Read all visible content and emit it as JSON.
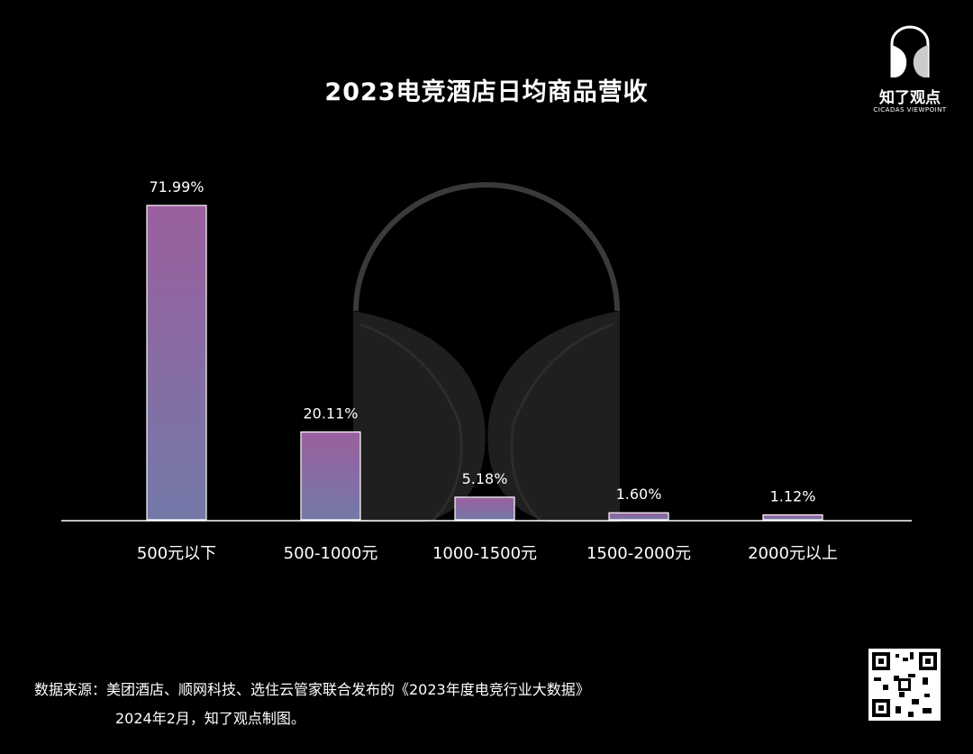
{
  "title": "2023电竞酒店日均商品营收",
  "logo": {
    "name": "知了观点",
    "sub": "CICADAS VIEWPOINT"
  },
  "source": {
    "line1": "数据来源：美团酒店、顺网科技、选住云管家联合发布的《2023年度电竞行业大数据》",
    "line2": "2024年2月，知了观点制图。"
  },
  "colors": {
    "bar_top": "#9b5f9f",
    "bar_bottom": "#7379a8",
    "background": "#000000",
    "axis": "#ffffff"
  },
  "chart_data": {
    "type": "bar",
    "title": "2023电竞酒店日均商品营收",
    "categories": [
      "500元以下",
      "500-1000元",
      "1000-1500元",
      "1500-2000元",
      "2000元以上"
    ],
    "values": [
      71.99,
      20.11,
      5.18,
      1.6,
      1.12
    ],
    "value_labels": [
      "71.99%",
      "20.11%",
      "5.18%",
      "1.60%",
      "1.12%"
    ],
    "unit": "%",
    "ylim": [
      0,
      72
    ],
    "grid": false,
    "legend": "none"
  }
}
